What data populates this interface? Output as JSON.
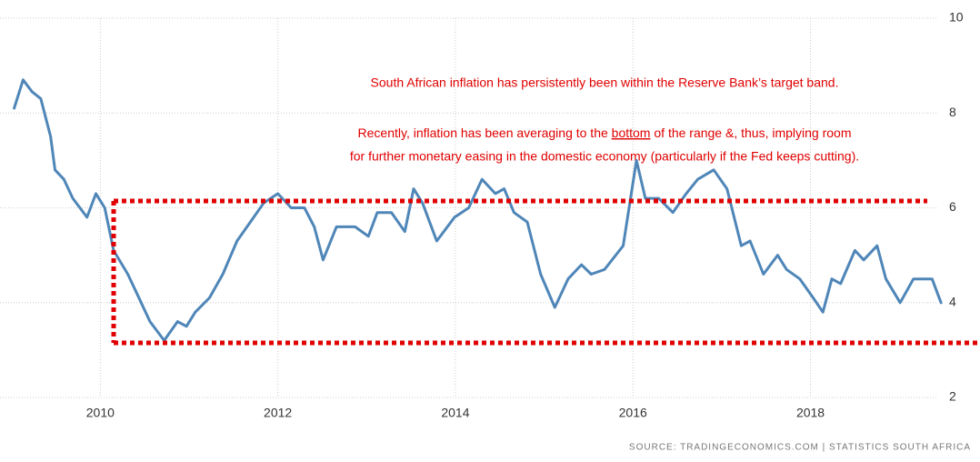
{
  "chart_data": {
    "type": "line",
    "annotation": {
      "line1": "South African inflation has persistently been within the Reserve Bank’s target band.",
      "line2_before": "Recently, inflation has been averaging to the ",
      "line2_emphasis": "bottom",
      "line2_after": " of the range &, thus, implying room",
      "line3": "for further monetary easing in the domestic economy (particularly if the Fed keeps cutting)."
    },
    "source": "SOURCE: TRADINGECONOMICS.COM | STATISTICS SOUTH AFRICA",
    "x": [
      2009.03,
      2009.13,
      2009.23,
      2009.33,
      2009.44,
      2009.49,
      2009.59,
      2009.69,
      2009.85,
      2009.95,
      2010.05,
      2010.15,
      2010.31,
      2010.41,
      2010.56,
      2010.72,
      2010.87,
      2010.97,
      2011.07,
      2011.23,
      2011.38,
      2011.54,
      2011.69,
      2011.84,
      2012.0,
      2012.15,
      2012.3,
      2012.41,
      2012.51,
      2012.66,
      2012.87,
      2013.02,
      2013.12,
      2013.28,
      2013.43,
      2013.53,
      2013.63,
      2013.79,
      2013.99,
      2014.15,
      2014.3,
      2014.45,
      2014.55,
      2014.66,
      2014.81,
      2014.96,
      2015.12,
      2015.27,
      2015.42,
      2015.53,
      2015.68,
      2015.89,
      2016.04,
      2016.14,
      2016.29,
      2016.45,
      2016.6,
      2016.73,
      2016.91,
      2017.06,
      2017.22,
      2017.32,
      2017.47,
      2017.63,
      2017.73,
      2017.88,
      2018.03,
      2018.14,
      2018.24,
      2018.34,
      2018.5,
      2018.6,
      2018.75,
      2018.85,
      2019.01,
      2019.16,
      2019.26,
      2019.37,
      2019.47
    ],
    "series": [
      {
        "color": "#4f86b8",
        "values": [
          8.1,
          8.7,
          8.45,
          8.3,
          7.5,
          6.8,
          6.6,
          6.2,
          5.8,
          6.3,
          6.0,
          5.1,
          4.6,
          4.2,
          3.6,
          3.2,
          3.6,
          3.5,
          3.8,
          4.1,
          4.6,
          5.3,
          5.7,
          6.1,
          6.3,
          6.0,
          6.0,
          5.6,
          4.9,
          5.6,
          5.6,
          5.4,
          5.9,
          5.9,
          5.5,
          6.4,
          6.1,
          5.3,
          5.8,
          6.0,
          6.6,
          6.3,
          6.4,
          5.9,
          5.7,
          4.6,
          3.9,
          4.5,
          4.8,
          4.6,
          4.7,
          5.2,
          7.0,
          6.2,
          6.2,
          5.9,
          6.3,
          6.6,
          6.8,
          6.4,
          5.2,
          5.3,
          4.6,
          5.0,
          4.7,
          4.5,
          4.1,
          3.8,
          4.5,
          4.4,
          5.1,
          4.9,
          5.2,
          4.5,
          4.0,
          4.5,
          4.5,
          4.5,
          4.0
        ]
      }
    ],
    "xlim": [
      2008.87,
      2019.5
    ],
    "xticks": [
      2010,
      2012,
      2014,
      2016,
      2018
    ],
    "ylim": [
      2,
      10
    ],
    "yticks": [
      2,
      4,
      6,
      8,
      10
    ],
    "grid": true
  }
}
